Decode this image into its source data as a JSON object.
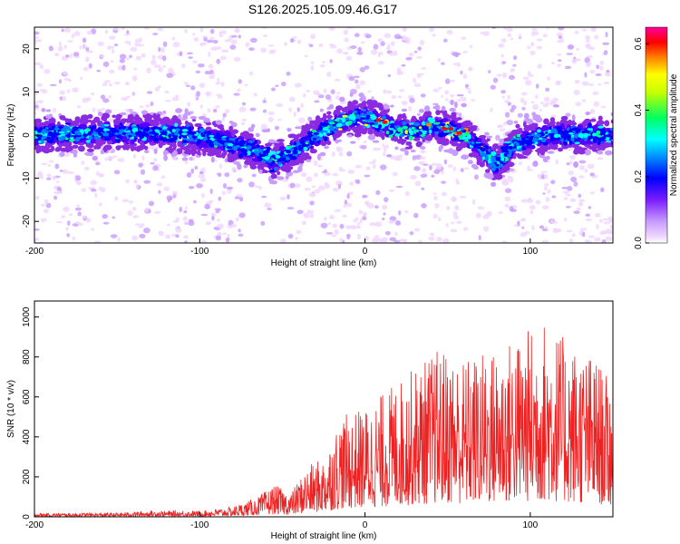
{
  "page_title": "S126.2025.105.09.46.G17",
  "chart_data": [
    {
      "type": "heatmap",
      "xlabel": "Height of straight line (km)",
      "ylabel": "Frequency (Hz)",
      "xlim": [
        -200,
        150
      ],
      "ylim": [
        -25,
        25
      ],
      "xticks": [
        -200,
        -100,
        0,
        100
      ],
      "yticks": [
        -20,
        -10,
        0,
        10,
        20
      ],
      "colorbar": {
        "label": "Normalized spectral amplitude",
        "range": [
          0.0,
          0.65
        ],
        "ticks": [
          "0.0",
          "0.2",
          "0.4",
          "0.6"
        ],
        "tick_values": [
          0.0,
          0.2,
          0.4,
          0.6
        ]
      },
      "ridge": {
        "description_points_x": [
          -200,
          -160,
          -120,
          -90,
          -70,
          -55,
          -40,
          -25,
          -10,
          0,
          10,
          20,
          30,
          40,
          50,
          60,
          70,
          80,
          90,
          110,
          150
        ],
        "description_points_y": [
          0,
          0.5,
          0.5,
          -1,
          -3,
          -6,
          -3,
          1,
          4,
          4,
          3,
          1,
          1,
          2,
          1.5,
          0,
          -3,
          -7,
          -2,
          0,
          0
        ]
      },
      "colors": [
        "#f0d6ff",
        "#c79bff",
        "#8a2be2",
        "#5500ff",
        "#0000ff",
        "#0080ff",
        "#00ffff",
        "#00ff80",
        "#ffff00",
        "#ff8000",
        "#ff0000",
        "#ff00a0"
      ]
    },
    {
      "type": "line",
      "xlabel": "Height of straight line (km)",
      "ylabel": "SNR (10 * v/v)",
      "xlim": [
        -200,
        150
      ],
      "ylim": [
        0,
        1080
      ],
      "xticks": [
        -200,
        -100,
        0,
        100
      ],
      "yticks": [
        0,
        200,
        400,
        600,
        800,
        1000
      ],
      "line_color": "#ee2222",
      "envelope": {
        "x": [
          -200,
          -150,
          -130,
          -100,
          -80,
          -65,
          -55,
          -45,
          -35,
          -25,
          -15,
          0,
          15,
          30,
          45,
          60,
          80,
          100,
          110,
          120,
          140,
          150
        ],
        "y": [
          18,
          20,
          30,
          30,
          50,
          100,
          160,
          120,
          250,
          300,
          500,
          550,
          650,
          750,
          850,
          800,
          850,
          950,
          1000,
          900,
          800,
          650
        ]
      }
    }
  ]
}
